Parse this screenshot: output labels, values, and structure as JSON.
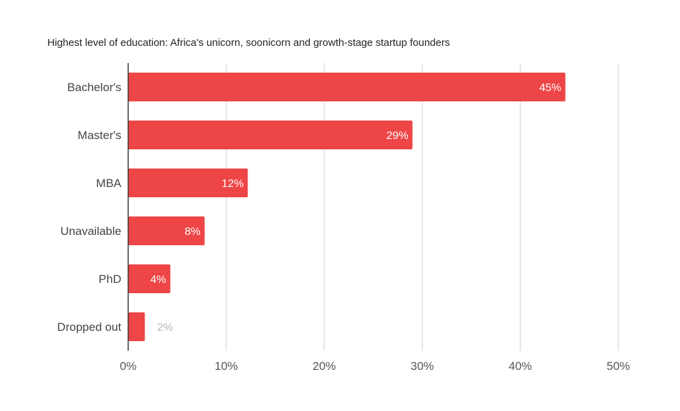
{
  "chart_data": {
    "type": "bar",
    "orientation": "horizontal",
    "title": "Highest level of education: Africa's unicorn, soonicorn and growth-stage startup founders",
    "xlabel": "",
    "ylabel": "",
    "categories": [
      "Bachelor's",
      "Master's",
      "MBA",
      "Unavailable",
      "PhD",
      "Dropped out"
    ],
    "values": [
      44.6,
      29,
      12.2,
      7.8,
      4.3,
      1.7
    ],
    "data_labels": [
      "45%",
      "29%",
      "12%",
      "8%",
      "4%",
      "2%"
    ],
    "xlim": [
      0,
      50
    ],
    "xticks": [
      "0%",
      "10%",
      "20%",
      "30%",
      "40%",
      "50%"
    ],
    "grid": true,
    "legend": "none",
    "bar_color": "#ee4546",
    "label_color_inside": "#ffffff",
    "label_color_outside": "#b7b7b7"
  }
}
